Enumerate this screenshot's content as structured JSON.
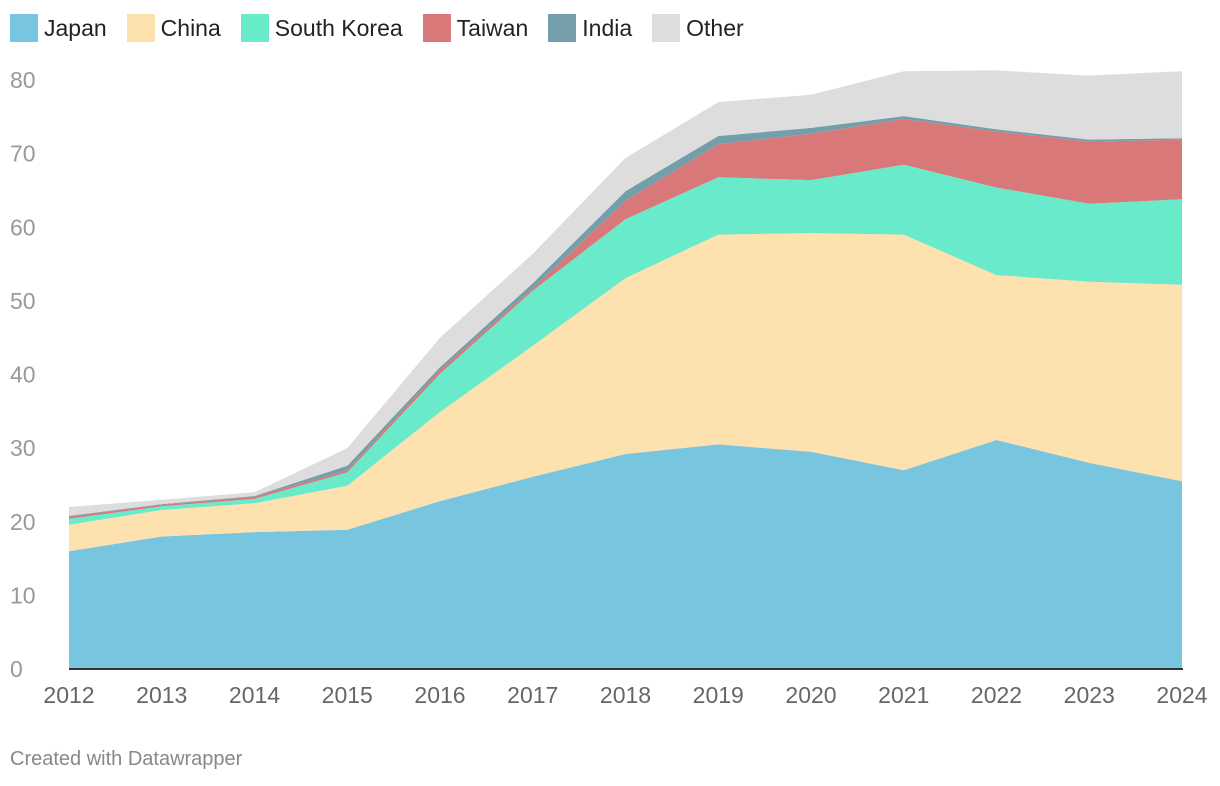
{
  "chart_data": {
    "type": "area",
    "stacked": true,
    "x": [
      "2012",
      "2013",
      "2014",
      "2015",
      "2016",
      "2017",
      "2018",
      "2019",
      "2020",
      "2021",
      "2022",
      "2023",
      "2024"
    ],
    "ylim": [
      0,
      80
    ],
    "yticks": [
      "0",
      "10",
      "20",
      "30",
      "40",
      "50",
      "60",
      "70",
      "80"
    ],
    "grid": false,
    "legend_position": "top-left",
    "series": [
      {
        "name": "Japan",
        "color": "#77c5df",
        "values": [
          16,
          18,
          18.6,
          18.9,
          22.8,
          26.1,
          29.2,
          30.5,
          29.5,
          27,
          31.1,
          28,
          25.5
        ]
      },
      {
        "name": "China",
        "color": "#fde1ae",
        "values": [
          3.6,
          3.6,
          3.9,
          6,
          12.1,
          17.8,
          23.9,
          28.5,
          29.7,
          32,
          22.4,
          24.6,
          26.7
        ]
      },
      {
        "name": "South Korea",
        "color": "#69eacb",
        "values": [
          0.8,
          0.5,
          0.6,
          1.8,
          5.2,
          7.5,
          8,
          7.8,
          7.2,
          9.5,
          11.9,
          10.6,
          11.6
        ]
      },
      {
        "name": "Taiwan",
        "color": "#d87878",
        "values": [
          0.3,
          0.2,
          0.3,
          0.3,
          0.5,
          0.3,
          2.5,
          4.5,
          6.3,
          6.2,
          7.6,
          8.4,
          8.1
        ]
      },
      {
        "name": "India",
        "color": "#749eaa",
        "values": [
          0.1,
          0.1,
          0.1,
          0.6,
          0.4,
          0.7,
          1.3,
          1.1,
          0.8,
          0.4,
          0.3,
          0.3,
          0.2
        ]
      },
      {
        "name": "Other",
        "color": "#dddddd",
        "values": [
          1.2,
          0.6,
          0.5,
          2.4,
          4,
          4,
          4.5,
          4.6,
          4.5,
          6.1,
          8,
          8.7,
          9.1
        ]
      }
    ]
  },
  "footer": {
    "credit": "Created with Datawrapper"
  }
}
